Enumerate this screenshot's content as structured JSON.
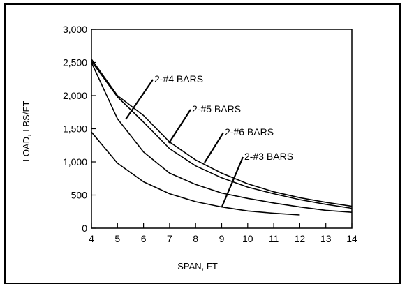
{
  "chart_data": {
    "type": "line",
    "title": "",
    "xlabel": "SPAN, FT",
    "ylabel": "LOAD, LBS/FT",
    "xlim": [
      4,
      14
    ],
    "ylim": [
      0,
      3000
    ],
    "x_ticks": [
      4,
      5,
      6,
      7,
      8,
      9,
      10,
      11,
      12,
      13,
      14
    ],
    "y_ticks": [
      0,
      500,
      1000,
      1500,
      2000,
      2500,
      3000
    ],
    "y_tick_labels": [
      "0",
      "500",
      "1,000",
      "1,500",
      "2,000",
      "2,500",
      "3,000"
    ],
    "grid": false,
    "legend": "none",
    "series": [
      {
        "name": "2-#3 BARS",
        "x": [
          4,
          5,
          6,
          7,
          8,
          9,
          10,
          11,
          12
        ],
        "y": [
          1450,
          980,
          700,
          520,
          400,
          320,
          260,
          225,
          200
        ]
      },
      {
        "name": "2-#4 BARS",
        "x": [
          4,
          5,
          6,
          7,
          8,
          9,
          10,
          11,
          12,
          13,
          14
        ],
        "y": [
          2500,
          1650,
          1150,
          830,
          660,
          530,
          450,
          380,
          320,
          270,
          240
        ]
      },
      {
        "name": "2-#5 BARS",
        "x": [
          4,
          5,
          6,
          7,
          8,
          9,
          10,
          11,
          12,
          13,
          14
        ],
        "y": [
          2520,
          1980,
          1600,
          1200,
          940,
          760,
          620,
          520,
          430,
          360,
          300
        ]
      },
      {
        "name": "2-#6 BARS",
        "x": [
          4,
          5,
          6,
          7,
          8,
          9,
          10,
          11,
          12,
          13,
          14
        ],
        "y": [
          2550,
          2000,
          1700,
          1300,
          1030,
          830,
          670,
          550,
          460,
          390,
          330
        ]
      }
    ]
  }
}
